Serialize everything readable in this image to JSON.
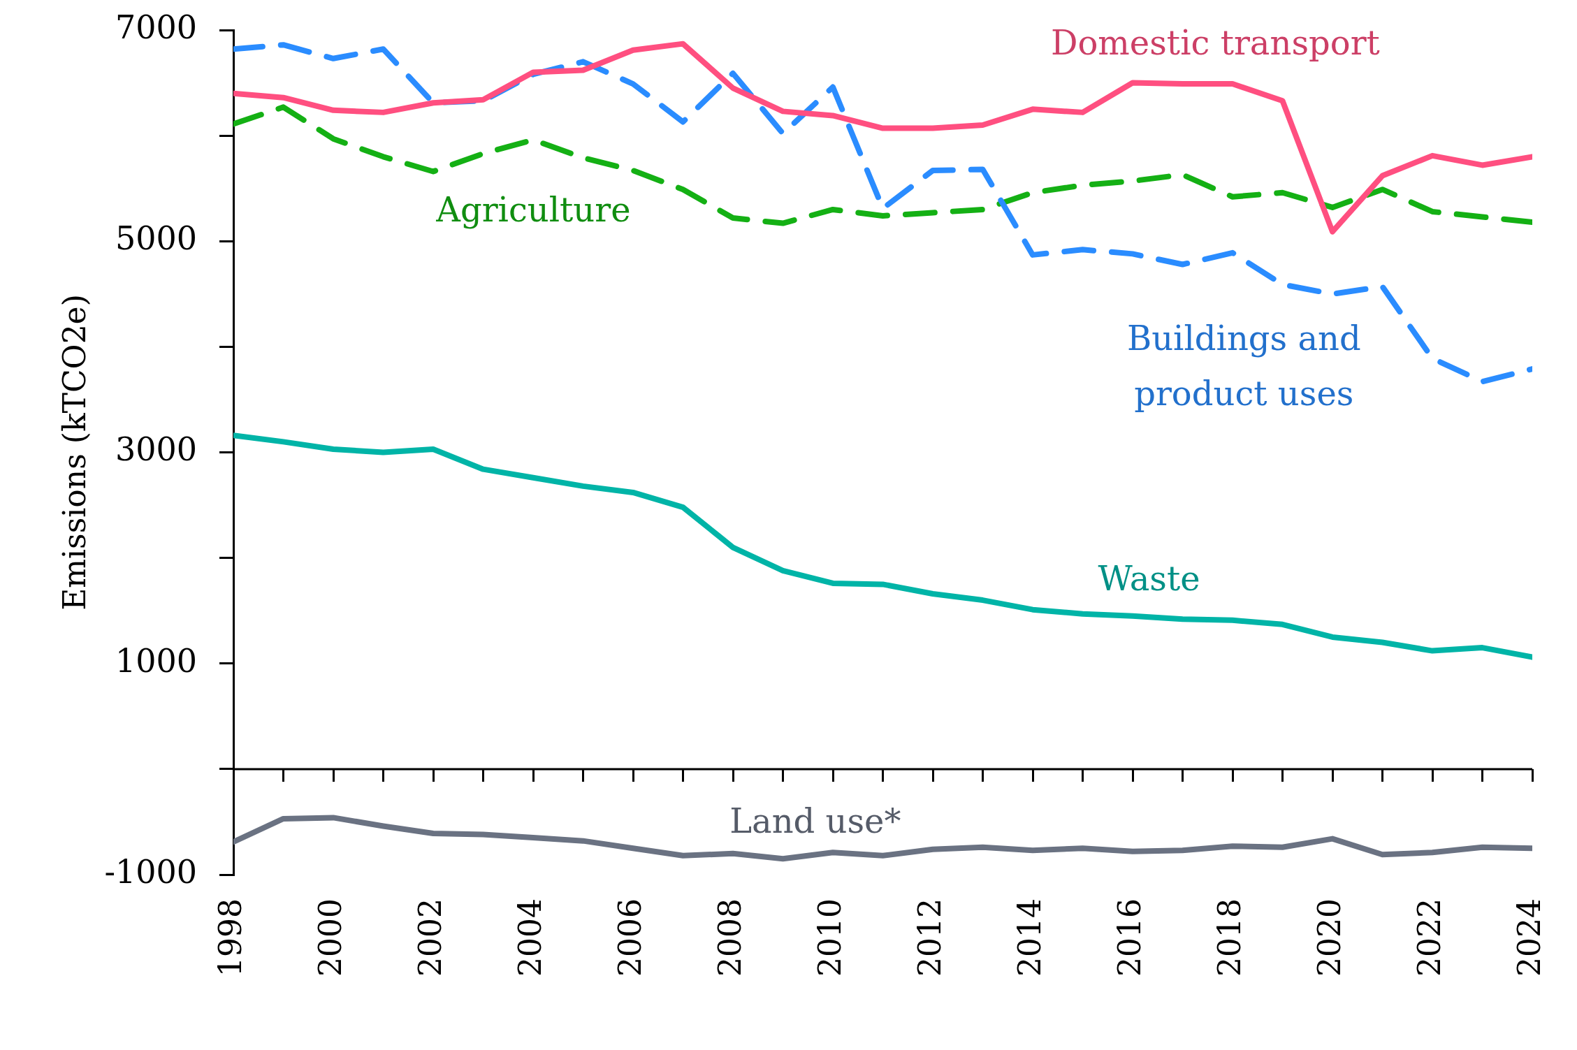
{
  "chart_data": {
    "type": "line",
    "ylabel": "Emissions (kTCO2e)",
    "x": [
      1998,
      1999,
      2000,
      2001,
      2002,
      2003,
      2004,
      2005,
      2006,
      2007,
      2008,
      2009,
      2010,
      2011,
      2012,
      2013,
      2014,
      2015,
      2016,
      2017,
      2018,
      2019,
      2020,
      2021,
      2022,
      2023,
      2024
    ],
    "xlim": [
      1998,
      2024
    ],
    "xticks": [
      1998,
      2000,
      2002,
      2004,
      2006,
      2008,
      2010,
      2012,
      2014,
      2016,
      2018,
      2020,
      2022,
      2024
    ],
    "ylim": [
      -1000,
      7000
    ],
    "yticks": [
      -1000,
      1000,
      3000,
      5000,
      7000
    ],
    "ref_lines": [
      {
        "axis": "y",
        "value": 0,
        "color": "#000000"
      }
    ],
    "grid": false,
    "legend": false,
    "marker": "none",
    "series": [
      {
        "name": "Domestic transport",
        "color": "#ff4f80",
        "line_style": "solid",
        "values": [
          6400,
          6360,
          6240,
          6220,
          6310,
          6340,
          6600,
          6620,
          6810,
          6870,
          6450,
          6230,
          6190,
          6070,
          6070,
          6100,
          6250,
          6220,
          6500,
          6490,
          6490,
          6330,
          5090,
          5620,
          5810,
          5720,
          5800
        ]
      },
      {
        "name": "Buildings and product uses",
        "color": "#2a8cff",
        "line_style": "dashed",
        "values": [
          6820,
          6860,
          6730,
          6820,
          6310,
          6330,
          6580,
          6700,
          6490,
          6130,
          6590,
          6020,
          6460,
          5310,
          5670,
          5680,
          4870,
          4920,
          4880,
          4780,
          4890,
          4590,
          4500,
          4570,
          3890,
          3670,
          3790
        ]
      },
      {
        "name": "Agriculture",
        "color": "#14b014",
        "line_style": "dashed",
        "values": [
          6110,
          6270,
          5970,
          5800,
          5660,
          5830,
          5960,
          5790,
          5670,
          5490,
          5220,
          5170,
          5300,
          5240,
          5270,
          5300,
          5460,
          5530,
          5570,
          5630,
          5420,
          5460,
          5320,
          5490,
          5280,
          5230,
          5180
        ]
      },
      {
        "name": "Waste",
        "color": "#00b4a7",
        "line_style": "solid",
        "values": [
          3160,
          3100,
          3030,
          3000,
          3030,
          2840,
          2760,
          2680,
          2620,
          2480,
          2100,
          1880,
          1760,
          1750,
          1660,
          1600,
          1510,
          1470,
          1450,
          1420,
          1410,
          1370,
          1250,
          1200,
          1120,
          1150,
          1060
        ]
      },
      {
        "name": "Land use*",
        "color": "#6a7282",
        "line_style": "solid",
        "values": [
          -690,
          -470,
          -460,
          -540,
          -610,
          -620,
          -650,
          -680,
          -750,
          -820,
          -800,
          -850,
          -790,
          -820,
          -760,
          -740,
          -770,
          -750,
          -780,
          -770,
          -730,
          -740,
          -660,
          -810,
          -790,
          -740,
          -750
        ]
      }
    ]
  }
}
